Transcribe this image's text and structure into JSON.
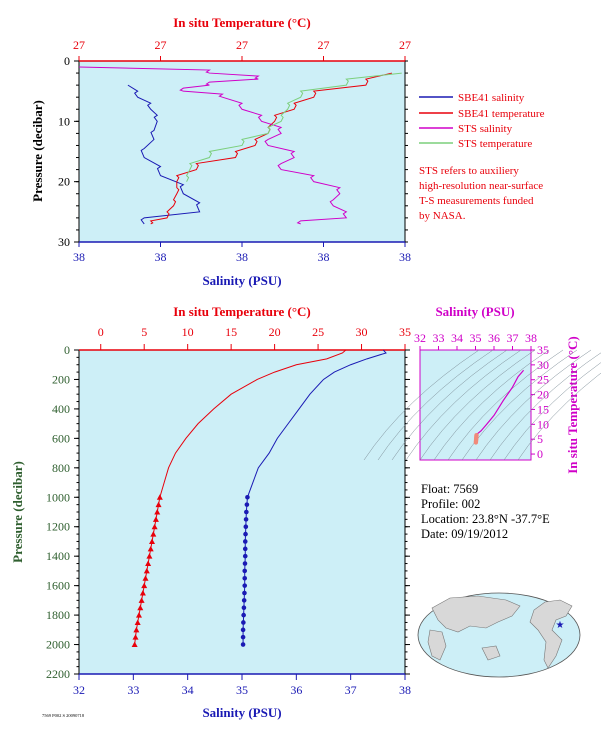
{
  "chart_data": [
    {
      "type": "line",
      "title": "",
      "top_axis_label": "In situ Temperature (°C)",
      "top_ticks": [
        "27",
        "27",
        "27",
        "27",
        "27"
      ],
      "xlabel": "Salinity (PSU)",
      "x_ticks": [
        "38",
        "38",
        "38",
        "38",
        "38"
      ],
      "ylabel": "Pressure (decibar)",
      "ylim": [
        30,
        0
      ],
      "y_ticks": [
        0,
        10,
        20,
        30
      ],
      "legend": [
        {
          "name": "SBE41 salinity",
          "color": "#1a1ab4"
        },
        {
          "name": "SBE41 temperature",
          "color": "#e8000b"
        },
        {
          "name": "STS salinity",
          "color": "#d000c8"
        },
        {
          "name": "STS temperature",
          "color": "#7ccf7c"
        }
      ],
      "note": [
        "STS refers to auxiliery",
        "high-resolution near-surface",
        "T-S measurements funded",
        "by NASA."
      ],
      "series": [
        {
          "name": "SBE41 salinity",
          "pressure": [
            4,
            6,
            8,
            10,
            13,
            16,
            19,
            22,
            25,
            27
          ],
          "sal_frac": [
            0.15,
            0.18,
            0.22,
            0.24,
            0.23,
            0.2,
            0.25,
            0.32,
            0.37,
            0.2
          ]
        },
        {
          "name": "SBE41 temperature",
          "pressure": [
            2,
            4,
            6,
            8,
            10,
            12,
            14,
            16,
            18,
            20,
            22,
            24,
            26,
            27
          ],
          "temp_frac": [
            0.96,
            0.88,
            0.72,
            0.66,
            0.6,
            0.58,
            0.54,
            0.48,
            0.36,
            0.3,
            0.3,
            0.29,
            0.27,
            0.22
          ]
        },
        {
          "name": "STS salinity",
          "pressure": [
            1,
            2,
            3,
            4,
            5,
            6,
            8,
            10,
            12,
            14,
            16,
            18,
            20,
            22,
            24,
            26,
            27
          ],
          "sal_frac": [
            0.0,
            0.4,
            0.55,
            0.4,
            0.32,
            0.44,
            0.5,
            0.56,
            0.62,
            0.58,
            0.66,
            0.62,
            0.72,
            0.8,
            0.78,
            0.82,
            0.68
          ]
        },
        {
          "name": "STS temperature",
          "pressure": [
            2,
            4,
            6,
            8,
            10,
            12,
            14,
            16,
            18,
            20
          ],
          "temp_frac": [
            0.99,
            0.82,
            0.68,
            0.64,
            0.62,
            0.58,
            0.5,
            0.4,
            0.34,
            0.33
          ]
        }
      ]
    },
    {
      "type": "line",
      "title": "",
      "top_axis_label": "In situ Temperature (°C)",
      "temp_ticks": [
        0,
        5,
        10,
        15,
        20,
        25,
        30,
        35
      ],
      "xlabel": "Salinity (PSU)",
      "sal_ticks": [
        32,
        33,
        34,
        35,
        36,
        37,
        38
      ],
      "ylabel": "Pressure (decibar)",
      "ylim": [
        2200,
        0
      ],
      "y_ticks": [
        0,
        200,
        400,
        600,
        800,
        1000,
        1200,
        1400,
        1600,
        1800,
        2000,
        2200
      ],
      "series": [
        {
          "name": "temperature",
          "color": "#e8000b",
          "pressure": [
            0,
            20,
            60,
            100,
            150,
            200,
            300,
            400,
            500,
            600,
            700,
            800,
            900,
            1000,
            1100,
            1200,
            1300,
            1400,
            1500,
            1600,
            1700,
            1800,
            1900,
            2000
          ],
          "values": [
            28.2,
            27.8,
            26.0,
            22.5,
            20.0,
            18.0,
            15.0,
            13.0,
            11.2,
            9.8,
            8.6,
            7.8,
            7.3,
            6.8,
            6.5,
            6.2,
            5.9,
            5.6,
            5.3,
            5.0,
            4.7,
            4.4,
            4.1,
            3.9
          ]
        },
        {
          "name": "salinity",
          "color": "#1a1ab4",
          "pressure": [
            0,
            20,
            60,
            100,
            150,
            200,
            300,
            400,
            500,
            600,
            700,
            800,
            900,
            1000,
            1100,
            1200,
            1300,
            1400,
            1500,
            1600,
            1700,
            1800,
            1900,
            2000
          ],
          "values": [
            37.6,
            37.65,
            37.3,
            37.0,
            36.7,
            36.5,
            36.25,
            36.05,
            35.85,
            35.65,
            35.5,
            35.3,
            35.2,
            35.1,
            35.08,
            35.07,
            35.06,
            35.06,
            35.05,
            35.05,
            35.04,
            35.03,
            35.02,
            35.02
          ]
        }
      ],
      "marker_pressures": [
        1000,
        1050,
        1100,
        1150,
        1200,
        1250,
        1300,
        1350,
        1400,
        1450,
        1500,
        1550,
        1600,
        1650,
        1700,
        1750,
        1800,
        1850,
        1900,
        1950,
        2000
      ]
    },
    {
      "type": "line",
      "title": "",
      "top_axis_label": "Salinity (PSU)",
      "sal_ticks": [
        32,
        33,
        34,
        35,
        36,
        37,
        38
      ],
      "ylabel": "In situ Temperature (°C)",
      "temp_ticks": [
        0,
        5,
        10,
        15,
        20,
        25,
        30,
        35
      ],
      "series": [
        {
          "name": "T-S curve",
          "sal": [
            37.6,
            37.3,
            37.0,
            36.5,
            36.0,
            35.6,
            35.3,
            35.1,
            35.05,
            35.02
          ],
          "temp": [
            28.2,
            26.0,
            22.5,
            18.0,
            13.0,
            10.0,
            7.8,
            6.8,
            5.3,
            3.9
          ]
        }
      ]
    }
  ],
  "info": {
    "float": "Float:  7569",
    "profile": "Profile:  002",
    "location": "Location:  23.8°N  -37.7°E",
    "date": "Date:  09/19/2012"
  },
  "footer": "7569 P002 S 20090718",
  "colors": {
    "plot_bg": "#cdeff7",
    "temperature": "#e8000b",
    "salinity": "#1a1ab4",
    "sts_salinity": "#d000c8",
    "sts_temperature": "#7ccf7c",
    "axis_label_magenta": "#d000c8",
    "pressure_label": "#2f5f2f",
    "land": "#cfcfcf"
  }
}
